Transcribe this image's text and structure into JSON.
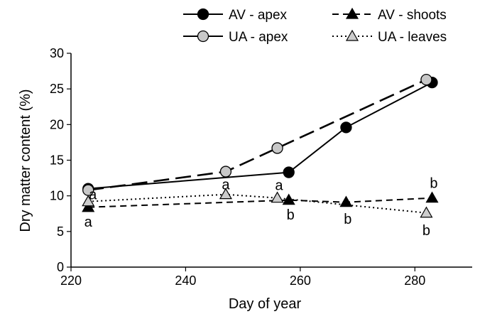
{
  "chart_data": {
    "type": "line",
    "xlabel": "Day of year",
    "ylabel": "Dry matter content (%)",
    "xlim": [
      220,
      290
    ],
    "ylim": [
      0,
      30
    ],
    "x_ticks": [
      220,
      240,
      260,
      280
    ],
    "y_ticks": [
      0,
      5,
      10,
      15,
      20,
      25,
      30
    ],
    "legend_position": "top",
    "series": [
      {
        "name": "AV - apex",
        "marker": "circle",
        "marker_fill": "#000000",
        "line_style": "solid",
        "points": [
          [
            223,
            11.0
          ],
          [
            258,
            13.3
          ],
          [
            268,
            19.6
          ],
          [
            283,
            25.9
          ]
        ]
      },
      {
        "name": "UA - apex",
        "marker": "circle",
        "marker_fill": "#c8c8c8",
        "line_style": "long-dash",
        "points": [
          [
            223,
            10.8
          ],
          [
            247,
            13.4
          ],
          [
            256,
            16.7
          ],
          [
            282,
            26.3
          ]
        ]
      },
      {
        "name": "AV - shoots",
        "marker": "triangle",
        "marker_fill": "#000000",
        "line_style": "dashed",
        "points": [
          [
            223,
            8.4
          ],
          [
            258,
            9.4
          ],
          [
            268,
            9.1
          ],
          [
            283,
            9.7
          ]
        ]
      },
      {
        "name": "UA - leaves",
        "marker": "triangle",
        "marker_fill": "#cccccc",
        "line_style": "dotted",
        "points": [
          [
            223,
            9.2
          ],
          [
            247,
            10.2
          ],
          [
            256,
            9.7
          ],
          [
            282,
            7.6
          ]
        ]
      }
    ],
    "annotations": [
      {
        "text": "a",
        "x": 223.8,
        "y": 10.2
      },
      {
        "text": "a",
        "x": 223.0,
        "y": 6.4
      },
      {
        "text": "a",
        "x": 247.0,
        "y": 11.6
      },
      {
        "text": "a",
        "x": 256.3,
        "y": 11.5
      },
      {
        "text": "b",
        "x": 258.3,
        "y": 7.4
      },
      {
        "text": "b",
        "x": 268.3,
        "y": 6.8
      },
      {
        "text": "b",
        "x": 282.0,
        "y": 5.2
      },
      {
        "text": "b",
        "x": 283.3,
        "y": 11.8
      }
    ]
  }
}
